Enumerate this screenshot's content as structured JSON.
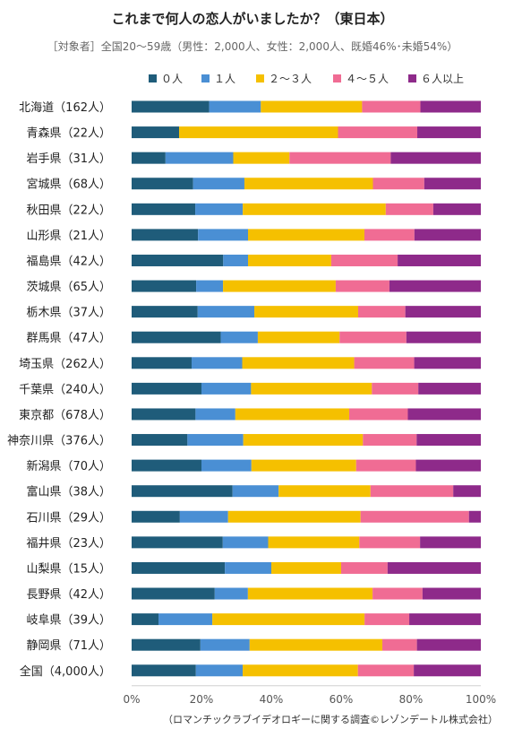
{
  "chart_data": {
    "type": "bar",
    "orientation": "horizontal",
    "stacked": true,
    "title": "これまで何人の恋人がいましたか？（東日本）",
    "subtitle": "［対象者］全国20～59歳（男性：2,000人、女性：2,000人、既婚46%･未婚54%）",
    "footer": "（ロマンチックラブイデオロギーに関する調査©レゾンデートル株式会社）",
    "legend_position": "top",
    "xlim": [
      0,
      100
    ],
    "x_ticks": [
      "0%",
      "20%",
      "40%",
      "60%",
      "80%",
      "100%"
    ],
    "grid": false,
    "categories": [
      "北海道（162人）",
      "青森県（22人）",
      "岩手県（31人）",
      "宮城県（68人）",
      "秋田県（22人）",
      "山形県（21人）",
      "福島県（42人）",
      "茨城県（65人）",
      "栃木県（37人）",
      "群馬県（47人）",
      "埼玉県（262人）",
      "千葉県（240人）",
      "東京都（678人）",
      "神奈川県（376人）",
      "新潟県（70人）",
      "富山県（38人）",
      "石川県（29人）",
      "福井県（23人）",
      "山梨県（15人）",
      "長野県（42人）",
      "岐阜県（39人）",
      "静岡県（71人）",
      "全国（4,000人）"
    ],
    "series": [
      {
        "name": "０人",
        "color": "#1f5c7a",
        "values": [
          22.2,
          13.6,
          9.7,
          17.6,
          18.2,
          19.0,
          26.2,
          18.5,
          18.9,
          25.5,
          17.2,
          20.0,
          18.3,
          16.0,
          20.0,
          28.9,
          13.8,
          26.1,
          26.7,
          23.8,
          7.7,
          19.7,
          18.4
        ]
      },
      {
        "name": "１人",
        "color": "#4a8fd4",
        "values": [
          14.8,
          0.0,
          19.4,
          14.7,
          13.6,
          14.3,
          7.1,
          7.7,
          16.2,
          10.6,
          14.5,
          14.2,
          11.4,
          16.0,
          14.3,
          13.2,
          13.8,
          13.0,
          13.3,
          9.5,
          15.4,
          14.1,
          13.4
        ]
      },
      {
        "name": "２～３人",
        "color": "#f5c000",
        "values": [
          29.0,
          45.5,
          16.1,
          36.8,
          40.9,
          33.3,
          23.8,
          32.3,
          29.7,
          23.4,
          32.1,
          34.6,
          32.6,
          34.3,
          30.0,
          26.3,
          37.9,
          26.1,
          20.0,
          35.7,
          43.6,
          38.0,
          33.0
        ]
      },
      {
        "name": "４～５人",
        "color": "#f06c94",
        "values": [
          16.7,
          22.7,
          29.0,
          14.7,
          13.6,
          14.3,
          19.0,
          15.4,
          13.5,
          19.1,
          17.2,
          13.3,
          16.8,
          15.4,
          17.1,
          23.7,
          31.0,
          17.4,
          13.3,
          14.3,
          12.8,
          9.9,
          16.0
        ]
      },
      {
        "name": "６人以上",
        "color": "#8e2a8a",
        "values": [
          17.3,
          18.2,
          25.8,
          16.2,
          13.6,
          19.0,
          23.8,
          26.2,
          21.6,
          21.3,
          19.1,
          17.9,
          20.9,
          18.4,
          18.6,
          7.9,
          3.4,
          17.4,
          26.7,
          16.7,
          20.5,
          18.3,
          19.2
        ]
      }
    ]
  }
}
